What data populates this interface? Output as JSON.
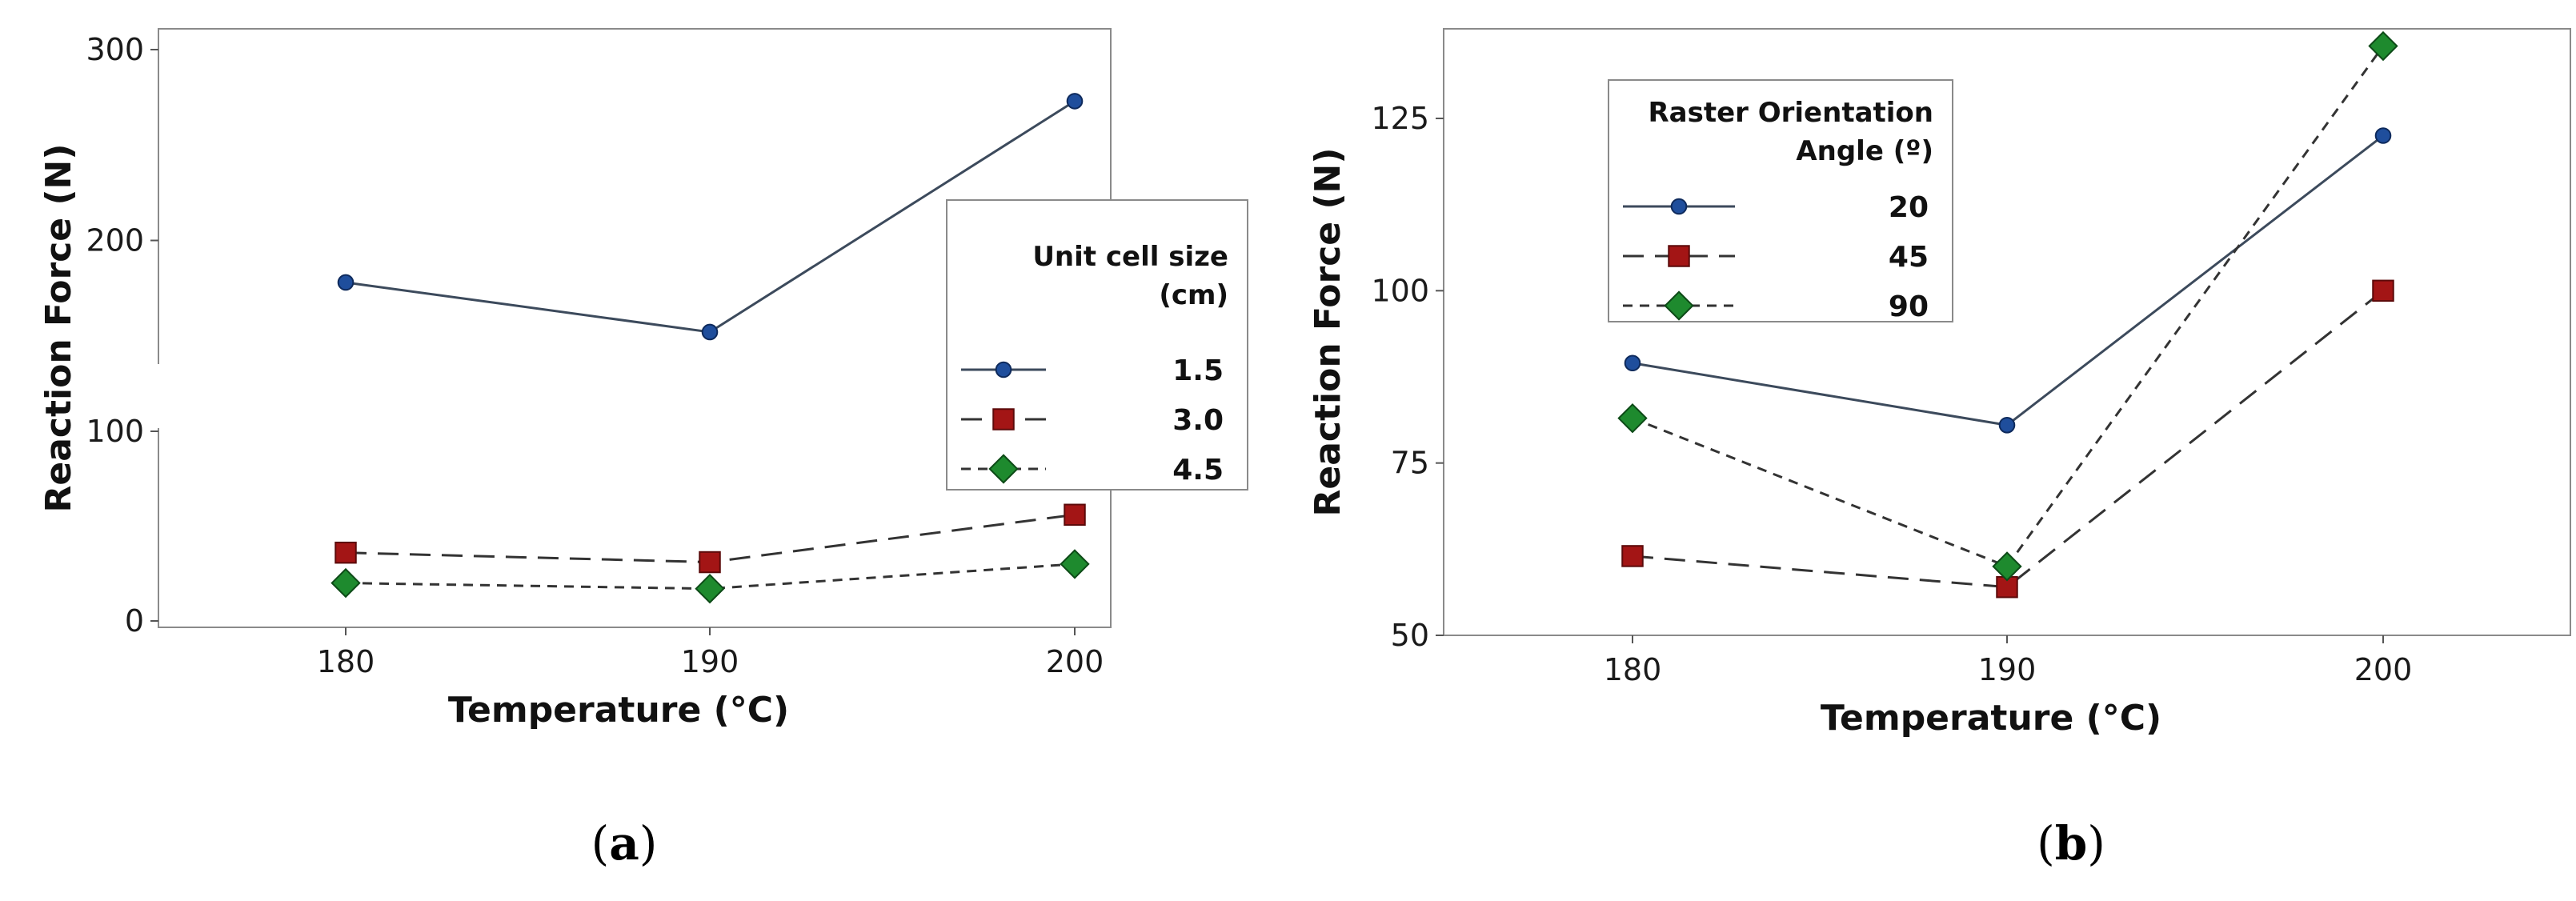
{
  "chart_data": [
    {
      "type": "line",
      "panel": "(a)",
      "panel_letter": "a",
      "xlabel": "Temperature (°C)",
      "ylabel": "Reaction Force (N)",
      "categories": [
        "180",
        "190",
        "200"
      ],
      "x": [
        180,
        190,
        200
      ],
      "ylim_upper": [
        100,
        300
      ],
      "ylim_lower": [
        0,
        100
      ],
      "yticks": [
        0,
        100,
        200,
        300
      ],
      "axis_break": true,
      "legend_title": [
        "Unit cell size",
        "(cm)"
      ],
      "legend_position": "right",
      "series": [
        {
          "name": "1.5",
          "values": [
            178,
            152,
            273
          ],
          "color": "#1f4e9c",
          "marker": "circle",
          "dash": "solid"
        },
        {
          "name": "3.0",
          "values": [
            36,
            31,
            56
          ],
          "color": "#a31515",
          "marker": "square",
          "dash": "long-dash"
        },
        {
          "name": "4.5",
          "values": [
            20,
            17,
            30
          ],
          "color": "#1e8a2e",
          "marker": "diamond",
          "dash": "short-dash"
        }
      ]
    },
    {
      "type": "line",
      "panel": "(b)",
      "panel_letter": "b",
      "xlabel": "Temperature (°C)",
      "ylabel": "Reaction Force (N)",
      "categories": [
        "180",
        "190",
        "200"
      ],
      "x": [
        180,
        190,
        200
      ],
      "ylim": [
        50,
        138
      ],
      "yticks": [
        50,
        75,
        100,
        125
      ],
      "legend_title": [
        "Raster Orientation",
        "Angle (º)"
      ],
      "legend_position": "top-left",
      "series": [
        {
          "name": "20",
          "values": [
            89.5,
            80.5,
            122.5
          ],
          "color": "#1f4e9c",
          "marker": "circle",
          "dash": "solid"
        },
        {
          "name": "45",
          "values": [
            61.5,
            57,
            100
          ],
          "color": "#a31515",
          "marker": "square",
          "dash": "long-dash"
        },
        {
          "name": "90",
          "values": [
            81.5,
            60,
            135.5
          ],
          "color": "#1e8a2e",
          "marker": "diamond",
          "dash": "short-dash"
        }
      ]
    }
  ]
}
